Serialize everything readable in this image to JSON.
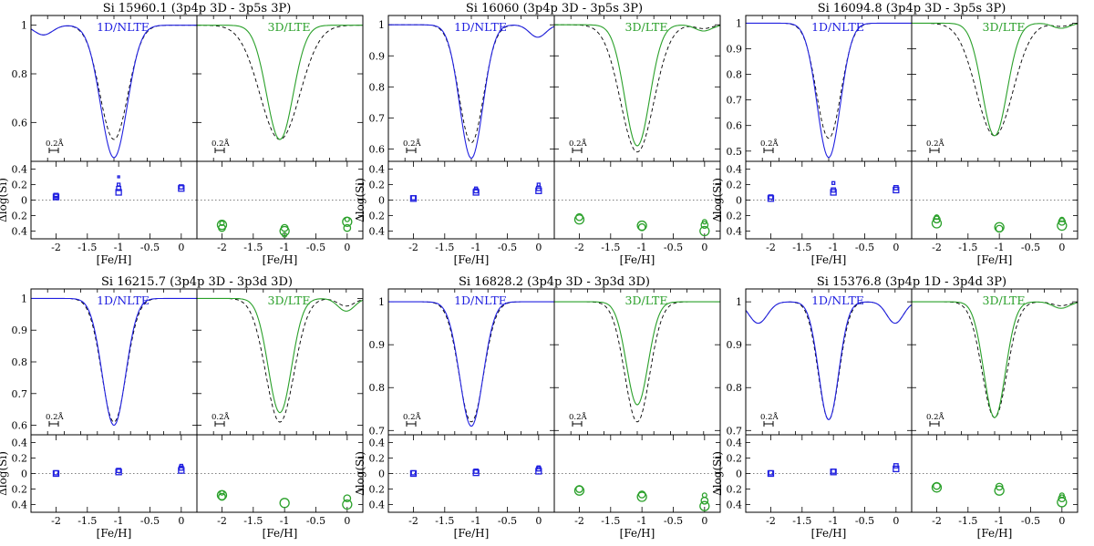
{
  "chart_data": {
    "type": "line",
    "colors": {
      "nlte": "#2020e0",
      "lte3d": "#2aa02a",
      "reference": "#000000"
    },
    "labels": {
      "left_tag": "1D/NLTE",
      "right_tag": "3D/LTE",
      "xlabel": "[Fe/H]",
      "ylabel_bottom": "Δlog(Si)",
      "scale_label": "0.2Å"
    },
    "bottom_axes": {
      "xticks": [
        -2,
        -1.5,
        -1,
        -0.5,
        0
      ],
      "xtick_labels": [
        "-2",
        "-1.5",
        "-1",
        "-0.5",
        "0"
      ],
      "xlim": [
        -2.4,
        0.25
      ],
      "ylim": [
        -0.5,
        0.5
      ],
      "yticks": [
        0.4,
        0.2,
        0,
        -0.2,
        -0.4
      ],
      "ytick_labels": [
        "0.4",
        "0.2",
        "0",
        "0.2",
        "0.4"
      ]
    },
    "panels": [
      {
        "title": "Si 15960.1 (3p4p 3D - 3p5s 3P)",
        "profile_ylim": [
          0.44,
          1.04
        ],
        "yticks": [
          1,
          0.8,
          0.6
        ],
        "ytick_labels": [
          "1",
          "0.8",
          "0.6"
        ],
        "nlte": {
          "depth": 0.545,
          "width": 0.16,
          "left_wing_dip": 0.04,
          "right_wing_dip": 0
        },
        "nlte_ref_depth": 0.47,
        "lte3d": {
          "depth": 0.47,
          "width": 0.16,
          "right_wing_dip": 0
        },
        "lte3d_ref_depth": 0.47,
        "lte3d_ref_width": 0.24,
        "nlte_points": {
          "feh": [
            -2,
            -1,
            0
          ],
          "dlog": [
            [
              0.04,
              0.06,
              0.03
            ],
            [
              0.1,
              0.15,
              0.2,
              0.3
            ],
            [
              0.15,
              0.17
            ]
          ]
        },
        "lte3d_points": {
          "feh": [
            -2,
            -1,
            0
          ],
          "dlog": [
            [
              -0.32,
              -0.36,
              -0.3
            ],
            [
              -0.4,
              -0.36,
              -0.45
            ],
            [
              -0.28,
              -0.36,
              -0.25
            ]
          ]
        }
      },
      {
        "title": "Si 16060 (3p4p 3D - 3p5s 3P)",
        "profile_ylim": [
          0.56,
          1.03
        ],
        "yticks": [
          1,
          0.9,
          0.8,
          0.7,
          0.6
        ],
        "ytick_labels": [
          "1",
          "0.9",
          "0.8",
          "0.7",
          "0.6"
        ],
        "nlte": {
          "depth": 0.43,
          "width": 0.14,
          "left_wing_dip": 0,
          "right_wing_dip": 0.04
        },
        "nlte_ref_depth": 0.38,
        "lte3d": {
          "depth": 0.39,
          "width": 0.15,
          "right_wing_dip": 0.02
        },
        "lte3d_ref_depth": 0.41,
        "lte3d_ref_width": 0.2,
        "nlte_points": {
          "feh": [
            -2,
            -1,
            0
          ],
          "dlog": [
            [
              0.02,
              0.03
            ],
            [
              0.1,
              0.12,
              0.15
            ],
            [
              0.12,
              0.15,
              0.2
            ]
          ]
        },
        "lte3d_points": {
          "feh": [
            -2,
            -1,
            0
          ],
          "dlog": [
            [
              -0.25,
              -0.22
            ],
            [
              -0.33,
              -0.35
            ],
            [
              -0.4,
              -0.32,
              -0.28
            ]
          ]
        }
      },
      {
        "title": "Si 16094.8 (3p4p 3D - 3p5s 3P)",
        "profile_ylim": [
          0.46,
          1.03
        ],
        "yticks": [
          1,
          0.9,
          0.8,
          0.7,
          0.6,
          0.5
        ],
        "ytick_labels": [
          "1",
          "0.9",
          "0.8",
          "0.7",
          "0.6",
          "0.5"
        ],
        "nlte": {
          "depth": 0.525,
          "width": 0.14,
          "left_wing_dip": 0,
          "right_wing_dip": 0
        },
        "nlte_ref_depth": 0.45,
        "lte3d": {
          "depth": 0.44,
          "width": 0.15,
          "right_wing_dip": 0.02
        },
        "lte3d_ref_depth": 0.44,
        "lte3d_ref_width": 0.22,
        "nlte_points": {
          "feh": [
            -2,
            -1,
            0
          ],
          "dlog": [
            [
              0.02,
              0.04
            ],
            [
              0.1,
              0.13,
              0.22
            ],
            [
              0.13,
              0.16
            ]
          ]
        },
        "lte3d_points": {
          "feh": [
            -2,
            -1,
            0
          ],
          "dlog": [
            [
              -0.3,
              -0.25,
              -0.22
            ],
            [
              -0.35,
              -0.37
            ],
            [
              -0.33,
              -0.28,
              -0.25
            ]
          ]
        }
      },
      {
        "title": "Si 16215.7 (3p4p 3D - 3p3d 3D)",
        "profile_ylim": [
          0.57,
          1.03
        ],
        "yticks": [
          1,
          0.9,
          0.8,
          0.7,
          0.6
        ],
        "ytick_labels": [
          "1",
          "0.9",
          "0.8",
          "0.7",
          "0.6"
        ],
        "nlte": {
          "depth": 0.4,
          "width": 0.14,
          "left_wing_dip": 0,
          "right_wing_dip": 0
        },
        "nlte_ref_depth": 0.39,
        "lte3d": {
          "depth": 0.36,
          "width": 0.14,
          "right_wing_dip": 0.04
        },
        "lte3d_ref_depth": 0.39,
        "lte3d_ref_width": 0.17,
        "nlte_points": {
          "feh": [
            -2,
            -1,
            0
          ],
          "dlog": [
            [
              0.0,
              0.01
            ],
            [
              0.02,
              0.04
            ],
            [
              0.04,
              0.07,
              0.1
            ]
          ]
        },
        "lte3d_points": {
          "feh": [
            -2,
            -1,
            0
          ],
          "dlog": [
            [
              -0.28,
              -0.3,
              -0.25
            ],
            [
              -0.38
            ],
            [
              -0.4,
              -0.32
            ]
          ]
        }
      },
      {
        "title": "Si 16828.2 (3p4p 3D - 3p3d 3D)",
        "profile_ylim": [
          0.69,
          1.03
        ],
        "yticks": [
          1,
          0.9,
          0.8,
          0.7
        ],
        "ytick_labels": [
          "1",
          "0.9",
          "0.8",
          "0.7"
        ],
        "nlte": {
          "depth": 0.29,
          "width": 0.14,
          "left_wing_dip": 0,
          "right_wing_dip": 0
        },
        "nlte_ref_depth": 0.28,
        "lte3d": {
          "depth": 0.24,
          "width": 0.13,
          "right_wing_dip": 0
        },
        "lte3d_ref_depth": 0.28,
        "lte3d_ref_width": 0.15,
        "nlte_points": {
          "feh": [
            -2,
            -1,
            0
          ],
          "dlog": [
            [
              0.0,
              0.01
            ],
            [
              0.01,
              0.03
            ],
            [
              0.03,
              0.06,
              0.08
            ]
          ]
        },
        "lte3d_points": {
          "feh": [
            -2,
            -1,
            0
          ],
          "dlog": [
            [
              -0.22,
              -0.2
            ],
            [
              -0.3,
              -0.27
            ],
            [
              -0.42,
              -0.35,
              -0.28
            ]
          ]
        }
      },
      {
        "title": "Si 15376.8 (3p4p 1D - 3p4d 3P)",
        "profile_ylim": [
          0.69,
          1.03
        ],
        "yticks": [
          1,
          0.9,
          0.8,
          0.7
        ],
        "ytick_labels": [
          "1",
          "0.9",
          "0.8",
          "0.7"
        ],
        "nlte": {
          "depth": 0.275,
          "width": 0.12,
          "left_wing_dip": 0.05,
          "right_wing_dip": 0.05
        },
        "nlte_ref_depth": 0.275,
        "lte3d": {
          "depth": 0.27,
          "width": 0.13,
          "right_wing_dip": 0.015
        },
        "lte3d_ref_depth": 0.27,
        "lte3d_ref_width": 0.15,
        "nlte_points": {
          "feh": [
            -2,
            -1,
            0
          ],
          "dlog": [
            [
              0.0,
              0.01
            ],
            [
              0.02,
              0.03
            ],
            [
              0.06,
              0.1
            ]
          ]
        },
        "lte3d_points": {
          "feh": [
            -2,
            -1,
            0
          ],
          "dlog": [
            [
              -0.18,
              -0.16
            ],
            [
              -0.22,
              -0.17
            ],
            [
              -0.37,
              -0.32,
              -0.28
            ]
          ]
        }
      }
    ]
  }
}
